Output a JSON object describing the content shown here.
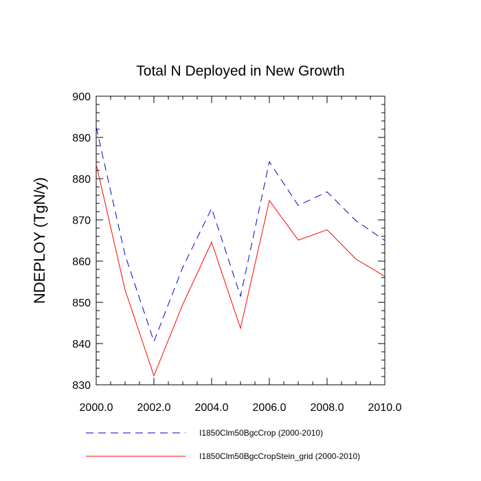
{
  "chart_data": {
    "type": "line",
    "title": "Total N Deployed in New Growth",
    "xlabel": "",
    "ylabel": "NDEPLOY  (TgN/y)",
    "xlim": [
      2000,
      2010
    ],
    "ylim": [
      830,
      900
    ],
    "xticks": [
      2000,
      2002,
      2004,
      2006,
      2008,
      2010
    ],
    "xtick_labels": [
      "2000.0",
      "2002.0",
      "2004.0",
      "2006.0",
      "2008.0",
      "2010.0"
    ],
    "yticks": [
      830,
      840,
      850,
      860,
      870,
      880,
      890,
      900
    ],
    "ytick_labels": [
      "830",
      "840",
      "850",
      "860",
      "870",
      "880",
      "890",
      "900"
    ],
    "grid": false,
    "legend_position": "bottom",
    "x": [
      2000,
      2001,
      2002,
      2003,
      2004,
      2005,
      2006,
      2007,
      2008,
      2009,
      2010
    ],
    "series": [
      {
        "name": "I1850Clm50BgcCrop (2000-2010)",
        "color": "#0000cc",
        "style": "dashed",
        "values": [
          892.5,
          861.5,
          840.5,
          858.5,
          872.8,
          851.5,
          884.1,
          873.5,
          876.8,
          869.8,
          865.0
        ]
      },
      {
        "name": "I1850Clm50BgcCropStein_grid (2000-2010)",
        "color": "#ff0000",
        "style": "solid",
        "values": [
          883.5,
          853.0,
          832.2,
          849.5,
          864.6,
          843.7,
          874.7,
          865.1,
          867.6,
          860.5,
          856.3
        ]
      }
    ]
  }
}
